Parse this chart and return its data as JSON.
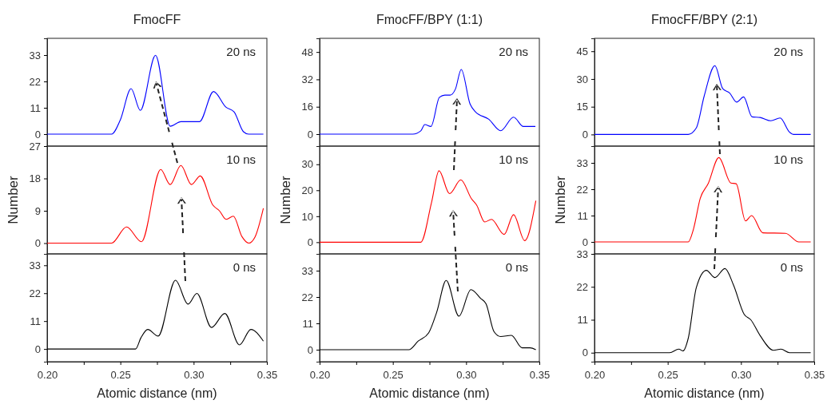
{
  "chart_data": [
    {
      "type": "line",
      "title": "FmocFF",
      "xlim": [
        0.2,
        0.35
      ],
      "ylim": [
        -5,
        40
      ],
      "yticks": [
        0,
        11,
        22,
        33
      ],
      "tick_labels": "y",
      "annotations": [
        "20 ns"
      ],
      "series": [
        {
          "color": "#0000ff",
          "x": [
            0.2,
            0.244,
            0.25,
            0.2573,
            0.2636,
            0.274,
            0.284,
            0.2913,
            0.304,
            0.3136,
            0.322,
            0.3276,
            0.334,
            0.3376,
            0.3476
          ],
          "values": [
            0,
            0,
            6,
            19,
            9.9,
            32.9,
            3.3,
            5.2,
            5.2,
            17.8,
            11.3,
            9.3,
            1,
            0,
            0
          ]
        }
      ]
    },
    {
      "type": "line",
      "title": "FmocFF/BPY (1:1)",
      "xlim": [
        0.2,
        0.35
      ],
      "ylim": [
        -7,
        56
      ],
      "yticks": [
        0,
        16,
        32,
        48
      ],
      "tick_labels": "y",
      "annotations": [
        "20 ns"
      ],
      "series": [
        {
          "color": "#0000ff",
          "x": [
            0.2,
            0.2636,
            0.2691,
            0.2718,
            0.276,
            0.2818,
            0.2855,
            0.2891,
            0.2927,
            0.2967,
            0.3027,
            0.3064,
            0.3155,
            0.3236,
            0.3324,
            0.3391,
            0.3473
          ],
          "values": [
            0,
            0,
            1.9,
            5.6,
            4.5,
            21.5,
            22.8,
            22.8,
            26.3,
            37.8,
            17.6,
            13,
            8.7,
            2,
            9.9,
            4.5,
            4.5
          ]
        }
      ]
    },
    {
      "type": "line",
      "title": "FmocFF/BPY (2:1)",
      "xlim": [
        0.2,
        0.35
      ],
      "ylim": [
        -6.3,
        52
      ],
      "yticks": [
        0,
        15,
        30,
        45
      ],
      "tick_labels": "y",
      "annotations": [
        "20 ns"
      ],
      "series": [
        {
          "color": "#0000ff",
          "x": [
            0.2,
            0.264,
            0.2695,
            0.2749,
            0.2822,
            0.2876,
            0.2922,
            0.2971,
            0.3018,
            0.3076,
            0.3131,
            0.3204,
            0.3267,
            0.3331,
            0.3358,
            0.3476
          ],
          "values": [
            0,
            0,
            3.5,
            20.8,
            37.2,
            24.7,
            22.5,
            17.5,
            20.3,
            9.5,
            9.2,
            7.4,
            8.9,
            1.3,
            0,
            0
          ]
        }
      ]
    },
    {
      "type": "line",
      "ylabel": "Number",
      "xlim": [
        0.2,
        0.35
      ],
      "ylim": [
        -3,
        27
      ],
      "yticks": [
        0,
        9,
        18,
        27
      ],
      "tick_labels": "y",
      "annotations": [
        "10 ns"
      ],
      "series": [
        {
          "color": "#ff0000",
          "x": [
            0.2,
            0.244,
            0.2542,
            0.2644,
            0.2775,
            0.284,
            0.2913,
            0.2985,
            0.3045,
            0.3131,
            0.3176,
            0.3222,
            0.3271,
            0.333,
            0.3376,
            0.342,
            0.3476
          ],
          "values": [
            0,
            0,
            4.5,
            0.4,
            20.5,
            16.3,
            21.6,
            16.3,
            18.7,
            10.6,
            9,
            6.6,
            7.5,
            1.8,
            0,
            1.8,
            9.7
          ]
        }
      ]
    },
    {
      "type": "line",
      "ylabel": "Number",
      "xlim": [
        0.2,
        0.35
      ],
      "ylim": [
        -4.5,
        37
      ],
      "yticks": [
        0,
        10,
        20,
        30
      ],
      "tick_labels": "y",
      "annotations": [
        "10 ns"
      ],
      "series": [
        {
          "color": "#ff0000",
          "x": [
            0.2,
            0.2691,
            0.2764,
            0.2815,
            0.2887,
            0.2964,
            0.3036,
            0.3073,
            0.3127,
            0.3173,
            0.326,
            0.3324,
            0.34,
            0.3476
          ],
          "values": [
            0,
            0,
            15.3,
            27.5,
            18.7,
            24,
            16.8,
            14.2,
            7.8,
            8.8,
            3,
            10.6,
            0.6,
            16
          ]
        }
      ]
    },
    {
      "type": "line",
      "ylabel": "Number",
      "xlim": [
        0.2,
        0.35
      ],
      "ylim": [
        -5,
        40
      ],
      "yticks": [
        0,
        11,
        22,
        33
      ],
      "tick_labels": "y",
      "annotations": [
        "10 ns"
      ],
      "series": [
        {
          "color": "#ff0000",
          "x": [
            0.2,
            0.264,
            0.2676,
            0.2722,
            0.2776,
            0.2849,
            0.2931,
            0.2967,
            0.3031,
            0.3073,
            0.3149,
            0.3304,
            0.3395,
            0.3476
          ],
          "values": [
            0,
            0,
            5.4,
            18.2,
            24.3,
            35.2,
            24.6,
            24.3,
            8.8,
            11,
            3.8,
            3.6,
            0,
            0
          ]
        }
      ]
    },
    {
      "type": "line",
      "xlabel": "Atomic distance (nm)",
      "xlim": [
        0.2,
        0.35
      ],
      "ylim": [
        -5,
        37.5
      ],
      "yticks": [
        0,
        11,
        22,
        33
      ],
      "annotations": [
        "0 ns"
      ],
      "xticks": [
        {
          "value": 0.2,
          "label": "0.20"
        },
        {
          "value": 0.225,
          "label": null
        },
        {
          "value": 0.25,
          "label": "0.25"
        },
        {
          "value": 0.275,
          "label": null
        },
        {
          "value": 0.3,
          "label": "0.30"
        },
        {
          "value": 0.325,
          "label": null
        },
        {
          "value": 0.35,
          "label": "0.35"
        }
      ],
      "series": [
        {
          "color": "#000000",
          "x": [
            0.2,
            0.2604,
            0.264,
            0.2687,
            0.2758,
            0.2876,
            0.2962,
            0.3022,
            0.3122,
            0.3213,
            0.3313,
            0.3391,
            0.3476
          ],
          "values": [
            0,
            0,
            4.4,
            7.7,
            5.1,
            27.1,
            17.7,
            21.9,
            8.5,
            14,
            1.6,
            7.7,
            3.1
          ]
        }
      ]
    },
    {
      "type": "line",
      "xlabel": "Atomic distance (nm)",
      "xlim": [
        0.2,
        0.35
      ],
      "ylim": [
        -5,
        40
      ],
      "yticks": [
        0,
        11,
        22,
        33
      ],
      "annotations": [
        "0 ns"
      ],
      "xticks": [
        {
          "value": 0.2,
          "label": "0.20"
        },
        {
          "value": 0.225,
          "label": null
        },
        {
          "value": 0.25,
          "label": "0.25"
        },
        {
          "value": 0.275,
          "label": null
        },
        {
          "value": 0.3,
          "label": "0.30"
        },
        {
          "value": 0.325,
          "label": null
        },
        {
          "value": 0.35,
          "label": "0.35"
        }
      ],
      "series": [
        {
          "color": "#000000",
          "x": [
            0.2,
            0.2609,
            0.2673,
            0.2745,
            0.28,
            0.2864,
            0.2951,
            0.3033,
            0.31,
            0.3136,
            0.3191,
            0.3236,
            0.3309,
            0.3382,
            0.3436,
            0.3476
          ],
          "values": [
            0,
            0,
            3.6,
            7.1,
            15.8,
            28.9,
            14,
            25.1,
            21.4,
            19.2,
            7.5,
            5.5,
            6,
            0.8,
            0.8,
            0
          ]
        }
      ]
    },
    {
      "type": "line",
      "xlabel": "Atomic distance (nm)",
      "xlim": [
        0.2,
        0.35
      ],
      "ylim": [
        -3,
        33
      ],
      "yticks": [
        0,
        11,
        22,
        33
      ],
      "annotations": [
        "0 ns"
      ],
      "xticks": [
        {
          "value": 0.2,
          "label": "0.20"
        },
        {
          "value": 0.225,
          "label": null
        },
        {
          "value": 0.25,
          "label": "0.25"
        },
        {
          "value": 0.275,
          "label": null
        },
        {
          "value": 0.3,
          "label": "0.30"
        },
        {
          "value": 0.325,
          "label": null
        },
        {
          "value": 0.35,
          "label": "0.35"
        }
      ],
      "series": [
        {
          "color": "#000000",
          "x": [
            0.2,
            0.2513,
            0.2576,
            0.2604,
            0.264,
            0.2695,
            0.2764,
            0.2822,
            0.2891,
            0.2949,
            0.3022,
            0.3067,
            0.3131,
            0.3222,
            0.3273,
            0.3331,
            0.3476
          ],
          "values": [
            0,
            0,
            1.2,
            0.6,
            4.8,
            21.7,
            27.5,
            25.1,
            28.1,
            22.6,
            12.8,
            11,
            5.7,
            0.8,
            1.2,
            0,
            0
          ]
        }
      ]
    }
  ]
}
